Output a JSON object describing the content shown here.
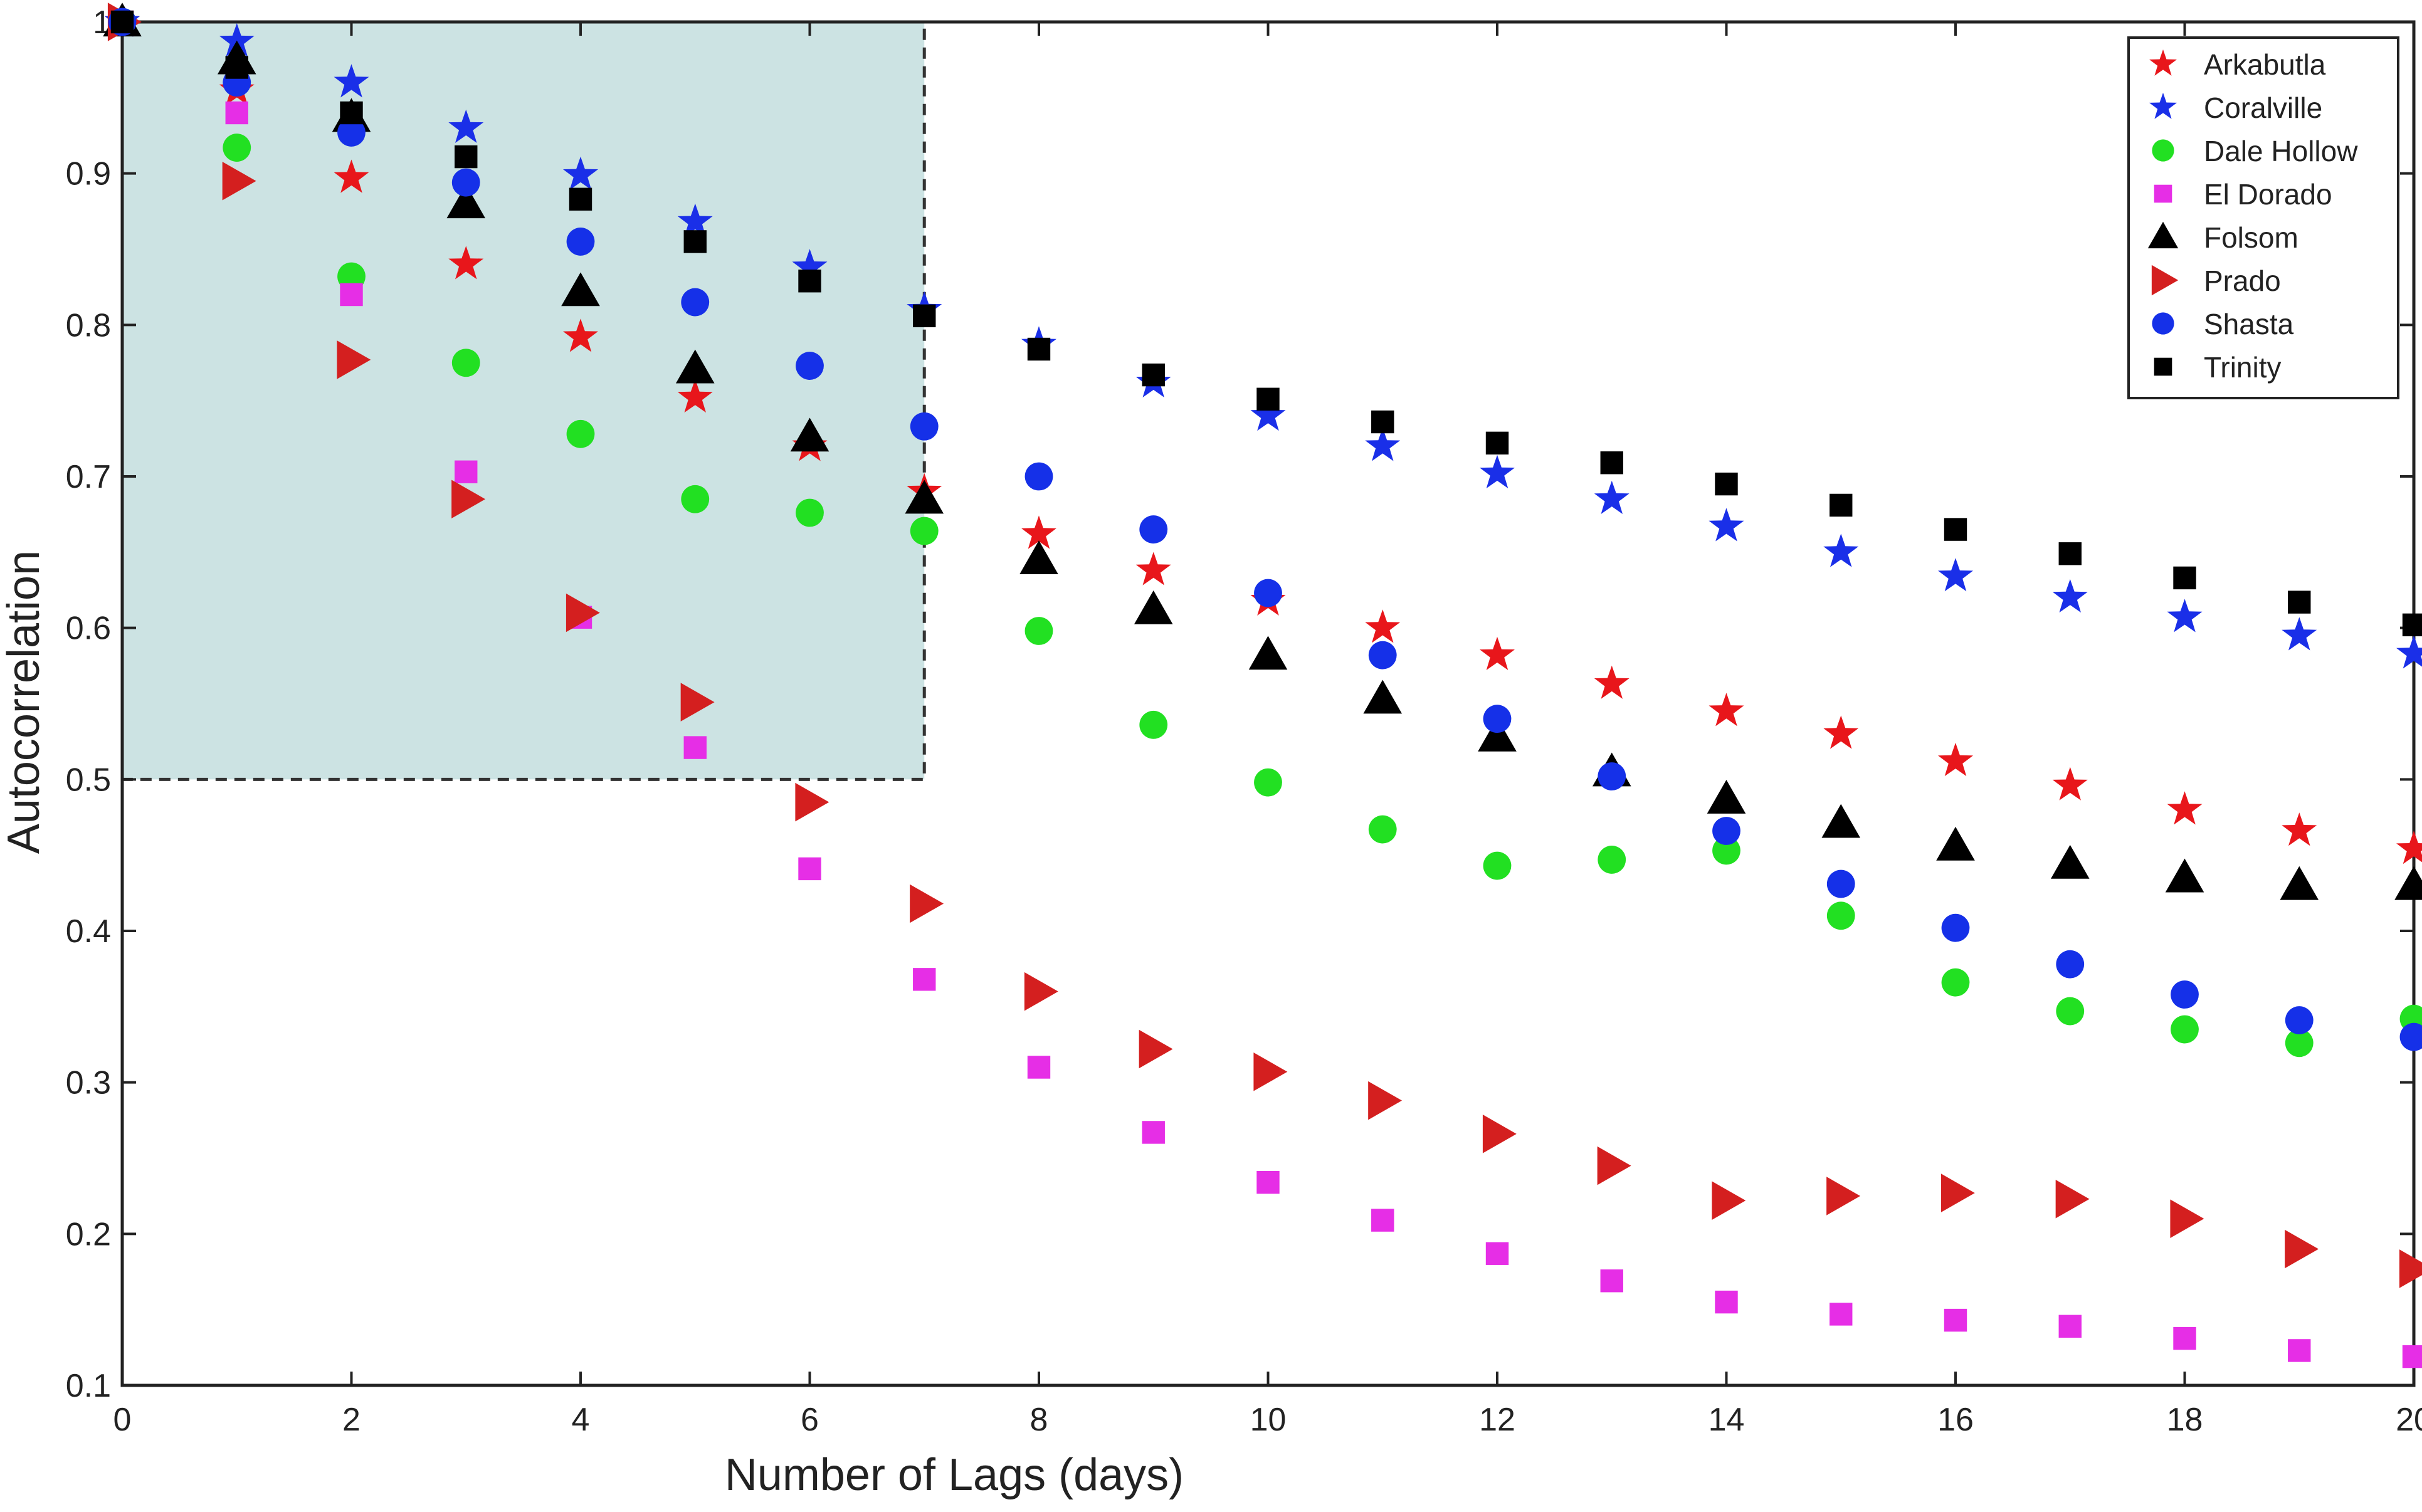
{
  "chart_data": {
    "type": "scatter",
    "xlabel": "Number of Lags (days)",
    "ylabel": "Autocorrelation",
    "xlim": [
      0,
      20
    ],
    "ylim": [
      0.1,
      1
    ],
    "xticks": [
      0,
      2,
      4,
      6,
      8,
      10,
      12,
      14,
      16,
      18,
      20
    ],
    "yticks": [
      0.1,
      0.2,
      0.3,
      0.4,
      0.5,
      0.6,
      0.7,
      0.8,
      0.9,
      1
    ],
    "xtick_labels": [
      "0",
      "2",
      "4",
      "6",
      "8",
      "10",
      "12",
      "14",
      "16",
      "18",
      "20"
    ],
    "ytick_labels": [
      "0.1",
      "0.2",
      "0.3",
      "0.4",
      "0.5",
      "0.6",
      "0.7",
      "0.8",
      "0.9",
      "1"
    ],
    "grid": false,
    "legend_position": "top-right",
    "highlight_region": {
      "x": [
        0,
        7
      ],
      "y": [
        0.5,
        1.0
      ],
      "color": "#cce3e3"
    },
    "x": [
      0,
      1,
      2,
      3,
      4,
      5,
      6,
      7,
      8,
      9,
      10,
      11,
      12,
      13,
      14,
      15,
      16,
      17,
      18,
      19,
      20
    ],
    "series": [
      {
        "name": "Arkabutla",
        "marker": "star",
        "color": "#e8161b",
        "values": [
          1.0,
          0.955,
          0.897,
          0.84,
          0.792,
          0.752,
          0.72,
          0.69,
          0.662,
          0.638,
          0.618,
          0.6,
          0.582,
          0.563,
          0.545,
          0.53,
          0.512,
          0.496,
          0.48,
          0.466,
          0.454
        ]
      },
      {
        "name": "Coralville",
        "marker": "star",
        "color": "#1a2fe8",
        "values": [
          1.0,
          0.987,
          0.96,
          0.93,
          0.899,
          0.868,
          0.838,
          0.81,
          0.787,
          0.762,
          0.74,
          0.72,
          0.702,
          0.685,
          0.667,
          0.65,
          0.634,
          0.62,
          0.607,
          0.595,
          0.583
        ]
      },
      {
        "name": "Dale Hollow",
        "marker": "circle",
        "color": "#22e022",
        "values": [
          1.0,
          0.917,
          0.832,
          0.775,
          0.728,
          0.685,
          0.676,
          0.664,
          0.598,
          0.536,
          0.498,
          0.467,
          0.443,
          0.447,
          0.453,
          0.41,
          0.366,
          0.347,
          0.335,
          0.326,
          0.342
        ]
      },
      {
        "name": "El Dorado",
        "marker": "square",
        "color": "#e62ee6",
        "values": [
          1.0,
          0.94,
          0.82,
          0.703,
          0.607,
          0.521,
          0.441,
          0.368,
          0.31,
          0.267,
          0.234,
          0.209,
          0.187,
          0.169,
          0.155,
          0.147,
          0.143,
          0.139,
          0.131,
          0.123,
          0.119
        ]
      },
      {
        "name": "Folsom",
        "marker": "triangle",
        "color": "#000000",
        "values": [
          1.0,
          0.975,
          0.937,
          0.88,
          0.822,
          0.771,
          0.726,
          0.685,
          0.645,
          0.612,
          0.582,
          0.553,
          0.528,
          0.505,
          0.487,
          0.471,
          0.456,
          0.444,
          0.435,
          0.43,
          0.43
        ]
      },
      {
        "name": "Prado",
        "marker": "triangle-right",
        "color": "#d41f1f",
        "values": [
          1.0,
          0.895,
          0.777,
          0.685,
          0.61,
          0.551,
          0.485,
          0.418,
          0.36,
          0.322,
          0.307,
          0.288,
          0.266,
          0.245,
          0.222,
          0.225,
          0.227,
          0.223,
          0.21,
          0.19,
          0.177
        ]
      },
      {
        "name": "Shasta",
        "marker": "circle",
        "color": "#1530e8",
        "values": [
          1.0,
          0.96,
          0.927,
          0.894,
          0.855,
          0.815,
          0.773,
          0.733,
          0.7,
          0.665,
          0.623,
          0.582,
          0.54,
          0.502,
          0.466,
          0.431,
          0.402,
          0.378,
          0.358,
          0.341,
          0.33
        ]
      },
      {
        "name": "Trinity",
        "marker": "square",
        "color": "#000000",
        "values": [
          1.0,
          0.97,
          0.94,
          0.911,
          0.883,
          0.855,
          0.829,
          0.806,
          0.784,
          0.767,
          0.751,
          0.736,
          0.722,
          0.709,
          0.695,
          0.681,
          0.665,
          0.649,
          0.633,
          0.617,
          0.602
        ]
      }
    ]
  }
}
